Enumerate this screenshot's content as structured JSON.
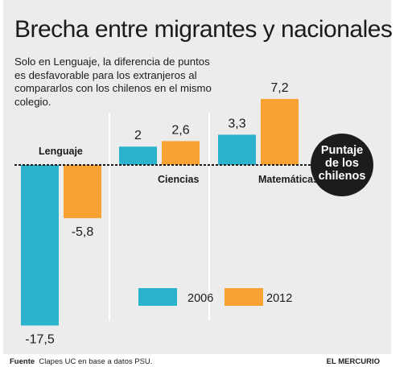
{
  "title": "Brecha entre migrantes y nacionales",
  "subtitle": "Solo en Lenguaje, la diferencia de puntos es desfavorable para los extranjeros al compararlos con los chilenos en el mismo colegio.",
  "reference_label": [
    "Puntaje",
    "de los",
    "chilenos"
  ],
  "footer": {
    "source_label": "Fuente",
    "source_text": "Clapes UC en base a datos PSU.",
    "brand": "EL MERCURIO"
  },
  "colors": {
    "2006": "#2bb3cc",
    "2012": "#f7a232",
    "panel": "#ececec"
  },
  "chart_data": {
    "type": "bar",
    "categories": [
      "Lenguaje",
      "Ciencias",
      "Matemáticas"
    ],
    "series": [
      {
        "name": "2006",
        "values": [
          -17.5,
          2,
          3.3
        ],
        "labels": [
          "-17,5",
          "2",
          "3,3"
        ]
      },
      {
        "name": "2012",
        "values": [
          -5.8,
          2.6,
          7.2
        ],
        "labels": [
          "-5,8",
          "2,6",
          "7,2"
        ]
      }
    ],
    "baseline": 0,
    "legend_position": "bottom"
  }
}
